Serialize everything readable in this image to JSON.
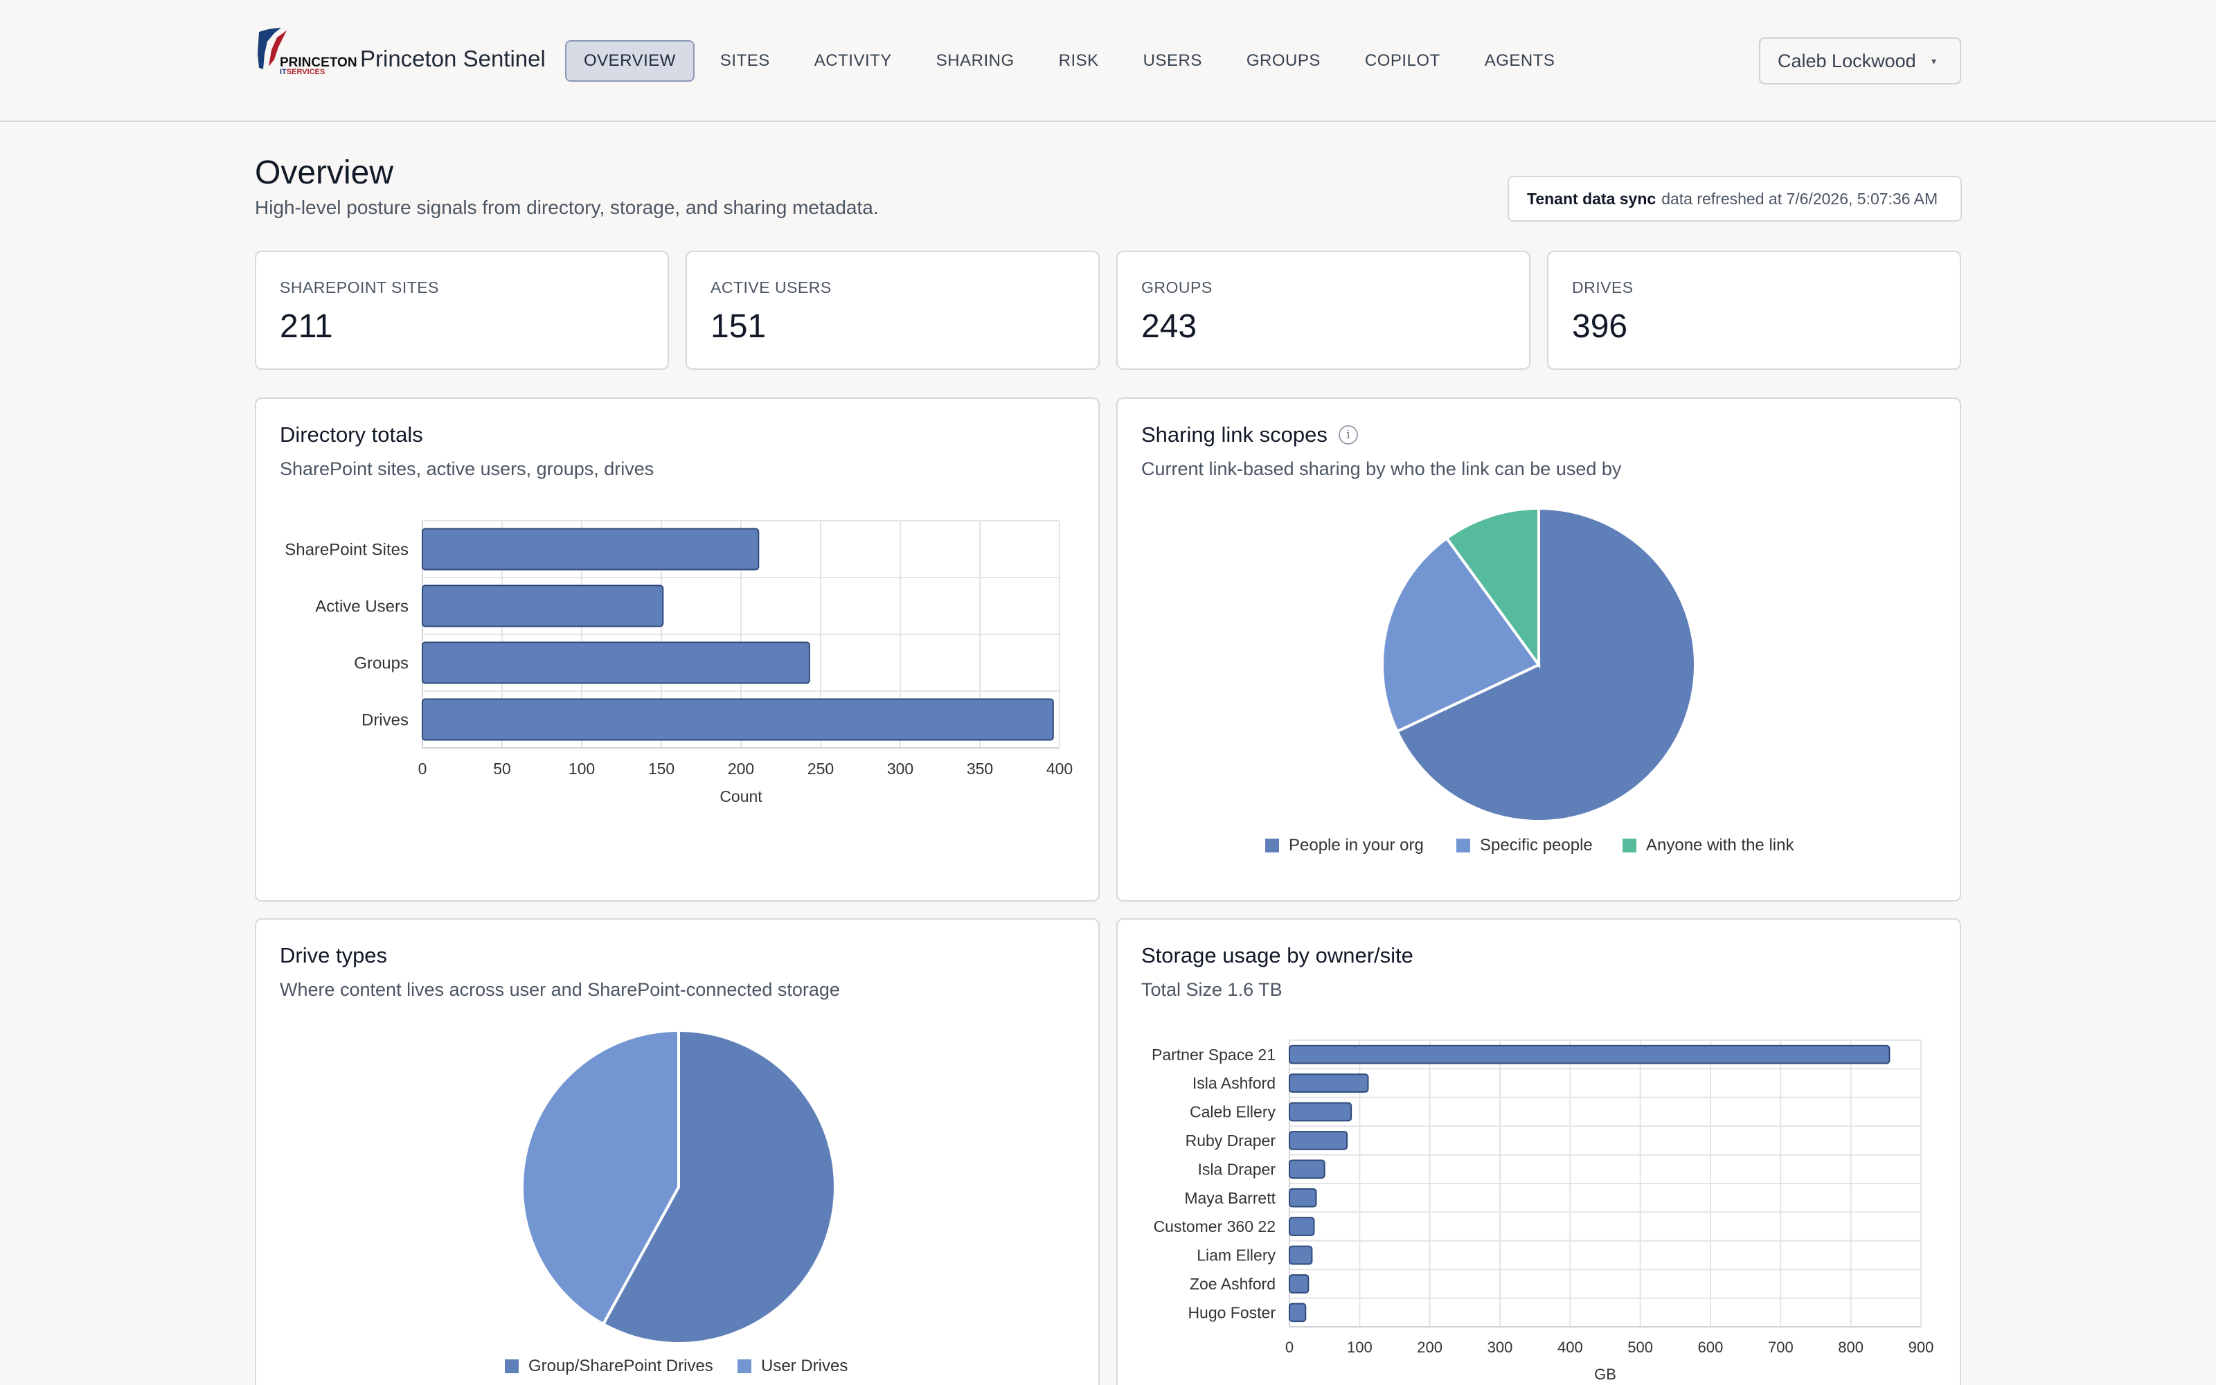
{
  "app": {
    "brand_name": "Princeton Sentinel",
    "logo_text": "PRINCETON",
    "logo_sub_it": "IT",
    "logo_sub_services": "SERVICES"
  },
  "nav": {
    "items": [
      "OVERVIEW",
      "SITES",
      "ACTIVITY",
      "SHARING",
      "RISK",
      "USERS",
      "GROUPS",
      "COPILOT",
      "AGENTS"
    ],
    "active": "OVERVIEW"
  },
  "user_menu": {
    "name": "Caleb Lockwood",
    "caret": "▾"
  },
  "page": {
    "title": "Overview",
    "subtitle": "High-level posture signals from directory, storage, and sharing metadata.",
    "sync_label": "Tenant data sync",
    "sync_text": "data refreshed at 7/6/2026, 5:07:36 AM"
  },
  "stats": [
    {
      "label": "SHAREPOINT SITES",
      "value": "211"
    },
    {
      "label": "ACTIVE USERS",
      "value": "151"
    },
    {
      "label": "GROUPS",
      "value": "243"
    },
    {
      "label": "DRIVES",
      "value": "396"
    }
  ],
  "panels": {
    "directory": {
      "title": "Directory totals",
      "subtitle": "SharePoint sites, active users, groups, drives"
    },
    "sharing": {
      "title": "Sharing link scopes",
      "subtitle": "Current link-based sharing by who the link can be used by",
      "info": "i"
    },
    "drives": {
      "title": "Drive types",
      "subtitle": "Where content lives across user and SharePoint-connected storage"
    },
    "storage": {
      "title": "Storage usage by owner/site",
      "subtitle": "Total Size 1.6 TB"
    }
  },
  "colors": {
    "bar": "#5f7fb8",
    "bar_stroke": "#2f4a7a",
    "pie_org": "#5f7fb8",
    "pie_specific": "#7396d3",
    "pie_anyone": "#55bb9c",
    "pie_user": "#7396d3"
  },
  "chart_data": [
    {
      "id": "directory",
      "type": "bar",
      "orientation": "horizontal",
      "categories": [
        "SharePoint Sites",
        "Active Users",
        "Groups",
        "Drives"
      ],
      "values": [
        211,
        151,
        243,
        396
      ],
      "xlabel": "Count",
      "ticks": [
        0,
        50,
        100,
        150,
        200,
        250,
        300,
        350,
        400
      ],
      "xlim": [
        0,
        400
      ],
      "grid": true
    },
    {
      "id": "sharing",
      "type": "pie",
      "labels": [
        "People in your org",
        "Specific people",
        "Anyone with the link"
      ],
      "values": [
        68,
        22,
        10
      ],
      "legend": "bottom"
    },
    {
      "id": "drives",
      "type": "pie",
      "labels": [
        "Group/SharePoint Drives",
        "User Drives"
      ],
      "values": [
        58,
        42
      ],
      "legend": "bottom"
    },
    {
      "id": "storage",
      "type": "bar",
      "orientation": "horizontal",
      "categories": [
        "Partner Space 21",
        "Isla Ashford",
        "Caleb Ellery",
        "Ruby Draper",
        "Isla Draper",
        "Maya Barrett",
        "Customer 360 22",
        "Liam Ellery",
        "Zoe Ashford",
        "Hugo Foster"
      ],
      "values": [
        855,
        112,
        88,
        82,
        50,
        38,
        35,
        32,
        27,
        23
      ],
      "xlabel": "GB",
      "ticks": [
        0,
        100,
        200,
        300,
        400,
        500,
        600,
        700,
        800,
        900
      ],
      "xlim": [
        0,
        900
      ],
      "grid": true
    }
  ]
}
